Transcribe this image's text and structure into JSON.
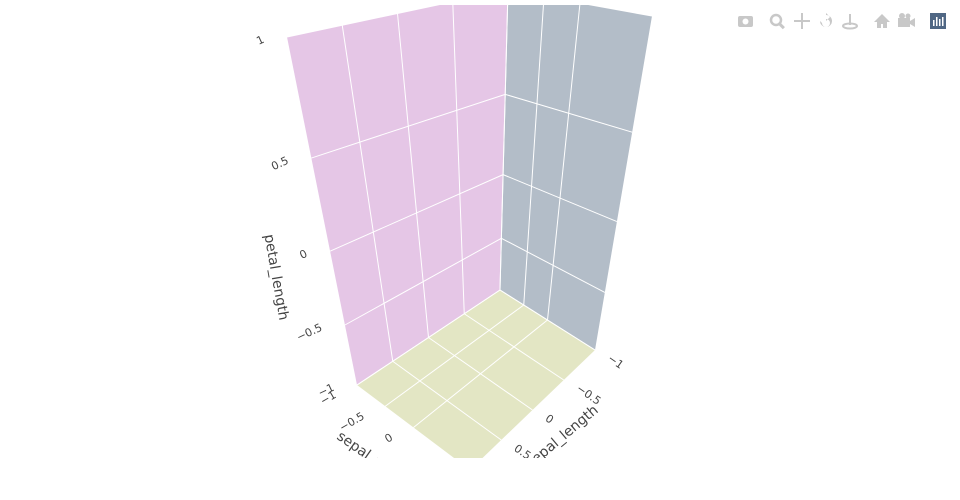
{
  "chart_data": {
    "type": "scatter3d",
    "xlabel": "sepal_width",
    "ylabel": "sepal_length",
    "zlabel": "petal_length",
    "xlim": [
      -1,
      1
    ],
    "ylim": [
      -1,
      1
    ],
    "zlim": [
      -1,
      1
    ],
    "xticks": [
      {
        "value": -1,
        "label": "−1"
      },
      {
        "value": -0.5,
        "label": "−0.5"
      },
      0
    ],
    "yticks": [
      {
        "value": -1,
        "label": "−1"
      },
      {
        "value": -0.5,
        "label": "−0.5"
      },
      0,
      0.5
    ],
    "zticks": [
      {
        "value": -1,
        "label": "−1"
      },
      {
        "value": -0.5,
        "label": "−0.5"
      },
      0,
      0.5,
      1
    ],
    "grid": true,
    "wall_colors": {
      "xz": "#e5c6e6",
      "yz": "#b3bdc8",
      "xy": "#e3e6c4"
    }
  }
}
